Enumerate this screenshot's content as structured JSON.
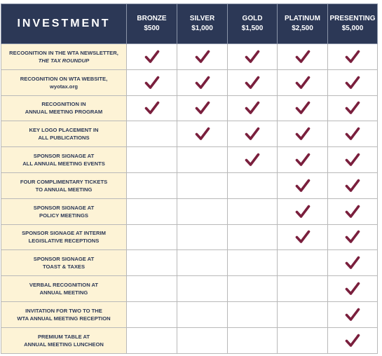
{
  "header": {
    "title": "INVESTMENT",
    "levels": [
      {
        "name": "BRONZE",
        "price": "$500"
      },
      {
        "name": "SILVER",
        "price": "$1,000"
      },
      {
        "name": "GOLD",
        "price": "$1,500"
      },
      {
        "name": "PLATINUM",
        "price": "$2,500"
      },
      {
        "name": "PRESENTING",
        "price": "$5,000"
      }
    ]
  },
  "rows": [
    {
      "line1": "RECOGNITION IN THE WTA NEWSLETTER,",
      "line2": "THE TAX ROUNDUP",
      "line2_italic": true,
      "checks": [
        true,
        true,
        true,
        true,
        true
      ]
    },
    {
      "line1": "RECOGNITION ON WTA WEBSITE,",
      "line2": "wyotax.org",
      "line2_italic": false,
      "checks": [
        true,
        true,
        true,
        true,
        true
      ]
    },
    {
      "line1": "RECOGNITION IN",
      "line2": "ANNUAL MEETING PROGRAM",
      "line2_italic": false,
      "checks": [
        true,
        true,
        true,
        true,
        true
      ]
    },
    {
      "line1": "KEY LOGO PLACEMENT IN",
      "line2": "ALL PUBLICATIONS",
      "line2_italic": false,
      "checks": [
        false,
        true,
        true,
        true,
        true
      ]
    },
    {
      "line1": "SPONSOR SIGNAGE AT",
      "line2": "ALL ANNUAL MEETING EVENTS",
      "line2_italic": false,
      "checks": [
        false,
        false,
        true,
        true,
        true
      ]
    },
    {
      "line1": "FOUR COMPLIMENTARY TICKETS",
      "line2": "TO ANNUAL MEETING",
      "line2_italic": false,
      "checks": [
        false,
        false,
        false,
        true,
        true
      ]
    },
    {
      "line1": "SPONSOR SIGNAGE AT",
      "line2": "POLICY MEETINGS",
      "line2_italic": false,
      "checks": [
        false,
        false,
        false,
        true,
        true
      ]
    },
    {
      "line1": "SPONSOR SIGNAGE AT INTERIM",
      "line2": "LEGISLATIVE RECEPTIONS",
      "line2_italic": false,
      "checks": [
        false,
        false,
        false,
        true,
        true
      ]
    },
    {
      "line1": "SPONSOR SIGNAGE AT",
      "line2": "TOAST & TAXES",
      "line2_italic": false,
      "checks": [
        false,
        false,
        false,
        false,
        true
      ]
    },
    {
      "line1": "VERBAL RECOGNITION AT",
      "line2": "ANNUAL MEETING",
      "line2_italic": false,
      "checks": [
        false,
        false,
        false,
        false,
        true
      ]
    },
    {
      "line1": "INVITATION FOR TWO TO THE",
      "line2": "WTA ANNUAL MEETING RECEPTION",
      "line2_italic": false,
      "checks": [
        false,
        false,
        false,
        false,
        true
      ]
    },
    {
      "line1": "PREMIUM TABLE AT",
      "line2": "ANNUAL MEETING LUNCHEON",
      "line2_italic": false,
      "checks": [
        false,
        false,
        false,
        false,
        true
      ]
    }
  ],
  "colors": {
    "header_bg": "#2c3856",
    "benefit_bg": "#fdf3d6",
    "check": "#7a1f3d"
  },
  "check_icon": "checkmark-icon"
}
